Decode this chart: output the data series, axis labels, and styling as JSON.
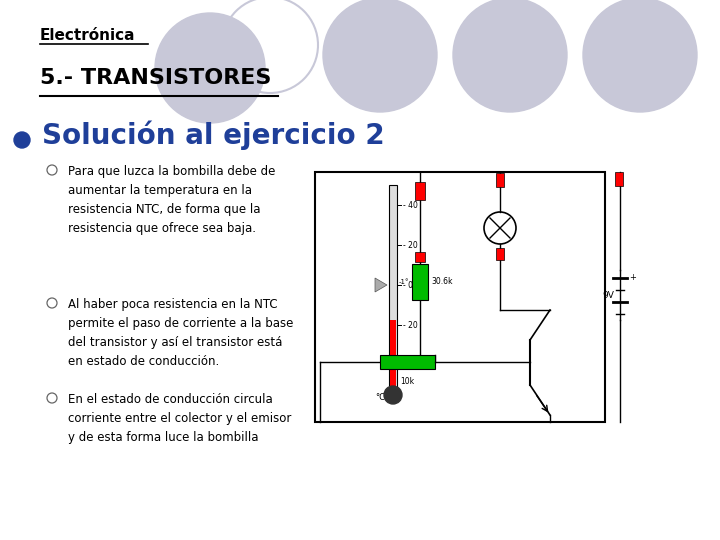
{
  "background_color": "#ffffff",
  "header_text": "Electrónica",
  "subtitle_text": "5.- TRANSISTORES",
  "bullet_text": "Solución al ejercicio 2",
  "bullet_color": "#1F3F99",
  "circle_color": "#c8c8d8",
  "sub_bullets": [
    "Para que luzca la bombilla debe de\naumentar la temperatura en la\nresistencia NTC, de forma que la\nresistencia que ofrece sea baja.",
    "Al haber poca resistencia en la NTC\npermite el paso de corriente a la base\ndel transistor y así el transistor está\nen estado de conducción.",
    "En el estado de conducción circula\ncorriente entre el colector y el emisor\ny de esta forma luce la bombilla"
  ],
  "sub_bullet_color": "#000000"
}
